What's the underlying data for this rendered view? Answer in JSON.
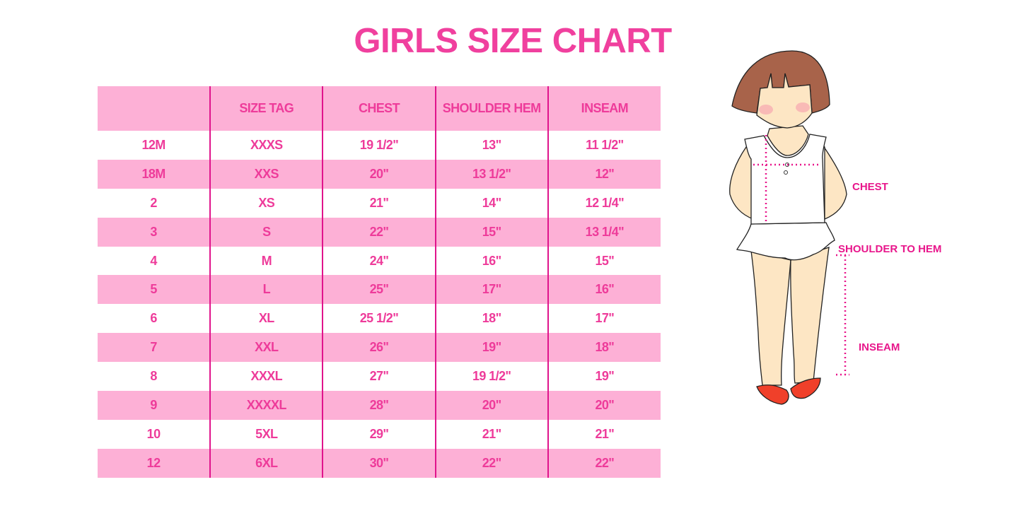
{
  "title": "GIRLS SIZE CHART",
  "colors": {
    "accent": "#f0409e",
    "row_pink": "#fdb0d6",
    "divider": "#e0148c"
  },
  "table": {
    "headers": [
      "",
      "SIZE TAG",
      "CHEST",
      "SHOULDER HEM",
      "INSEAM"
    ],
    "rows": [
      [
        "12M",
        "XXXS",
        "19 1/2\"",
        "13\"",
        "11 1/2\""
      ],
      [
        "18M",
        "XXS",
        "20\"",
        "13 1/2\"",
        "12\""
      ],
      [
        "2",
        "XS",
        "21\"",
        "14\"",
        "12 1/4\""
      ],
      [
        "3",
        "S",
        "22\"",
        "15\"",
        "13 1/4\""
      ],
      [
        "4",
        "M",
        "24\"",
        "16\"",
        "15\""
      ],
      [
        "5",
        "L",
        "25\"",
        "17\"",
        "16\""
      ],
      [
        "6",
        "XL",
        "25 1/2\"",
        "18\"",
        "17\""
      ],
      [
        "7",
        "XXL",
        "26\"",
        "19\"",
        "18\""
      ],
      [
        "8",
        "XXXL",
        "27\"",
        "19 1/2\"",
        "19\""
      ],
      [
        "9",
        "XXXXL",
        "28\"",
        "20\"",
        "20\""
      ],
      [
        "10",
        "5XL",
        "29\"",
        "21\"",
        "21\""
      ],
      [
        "12",
        "6XL",
        "30\"",
        "22\"",
        "22\""
      ]
    ]
  },
  "figure": {
    "labels": {
      "chest": "CHEST",
      "shoulder_to_hem": "SHOULDER TO HEM",
      "inseam": "INSEAM"
    }
  }
}
